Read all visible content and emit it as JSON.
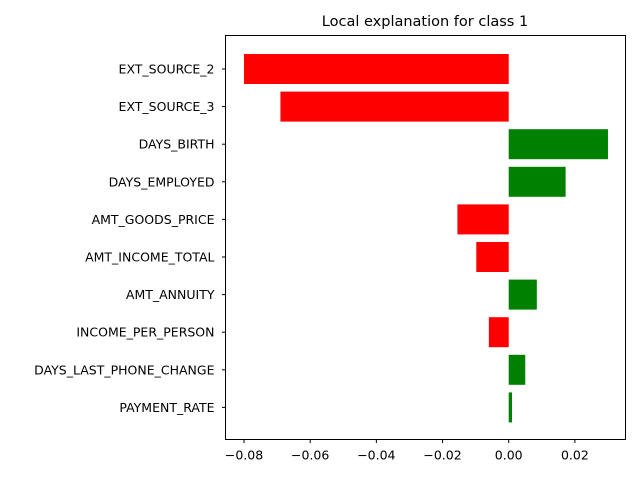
{
  "chart_data": {
    "type": "bar",
    "orientation": "horizontal",
    "title": "Local explanation for class 1",
    "xlabel": "",
    "ylabel": "",
    "categories": [
      "EXT_SOURCE_2",
      "EXT_SOURCE_3",
      "DAYS_BIRTH",
      "DAYS_EMPLOYED",
      "AMT_GOODS_PRICE",
      "AMT_INCOME_TOTAL",
      "AMT_ANNUITY",
      "INCOME_PER_PERSON",
      "DAYS_LAST_PHONE_CHANGE",
      "PAYMENT_RATE"
    ],
    "values": [
      -0.08,
      -0.069,
      0.03,
      0.0172,
      -0.0155,
      -0.0098,
      0.0085,
      -0.006,
      0.005,
      0.001
    ],
    "xlim": [
      -0.0856,
      0.0353
    ],
    "xticks": [
      -0.08,
      -0.06,
      -0.04,
      -0.02,
      0.0,
      0.02
    ],
    "xtick_labels": [
      "−0.08",
      "−0.06",
      "−0.04",
      "−0.02",
      "0.00",
      "0.02"
    ],
    "colors": {
      "positive": "#008000",
      "negative": "#ff0000"
    },
    "grid": false,
    "legend": "none"
  }
}
